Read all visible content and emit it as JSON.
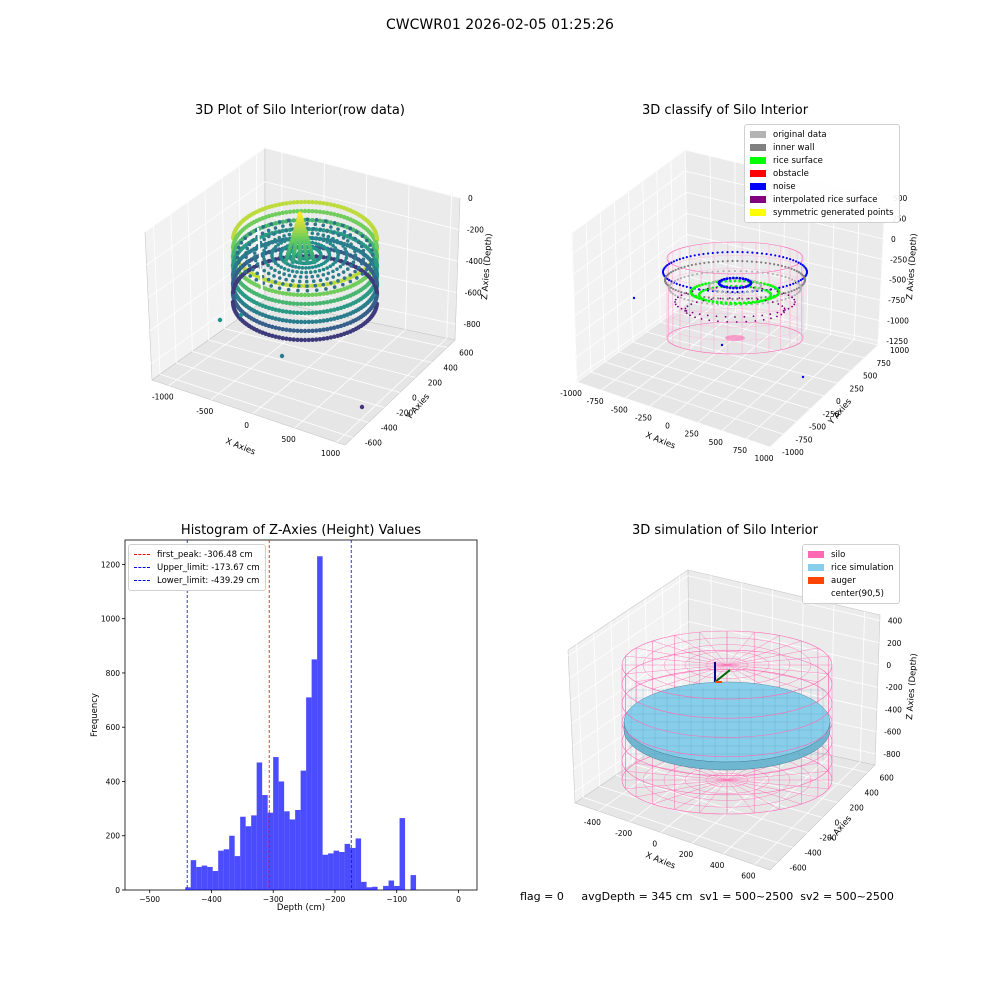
{
  "figure": {
    "suptitle": "CWCWR01 2026-02-05 01:25:26",
    "footer": {
      "flag": "flag = 0",
      "avg_depth": "avgDepth = 345 cm",
      "sv1": "sv1 = 500~2500",
      "sv2": "sv2 = 500~2500"
    }
  },
  "chart_data": [
    {
      "type": "scatter",
      "subtype": "3d",
      "title": "3D Plot of Silo Interior(row data)",
      "xlabel": "X Axies",
      "ylabel": "Y Axies",
      "zlabel": "Z Axies (Depth)",
      "x_ticks": [
        -1000,
        -500,
        0,
        500,
        1000
      ],
      "y_ticks": [
        -600,
        -400,
        -200,
        0,
        200,
        400,
        600
      ],
      "z_ticks": [
        -800,
        -600,
        -400,
        -200,
        0
      ],
      "xlim": [
        -1200,
        1100
      ],
      "ylim": [
        -700,
        700
      ],
      "zlim": [
        -900,
        0
      ],
      "colormap": "viridis",
      "grid": true
    },
    {
      "type": "scatter",
      "subtype": "3d",
      "title": "3D classify of Silo Interior",
      "xlabel": "X Axies",
      "ylabel": "Y Axies",
      "zlabel": "Z Axies (Depth)",
      "x_ticks": [
        -1000,
        -750,
        -500,
        -250,
        0,
        250,
        500,
        750,
        1000
      ],
      "y_ticks": [
        -1000,
        -750,
        -500,
        -250,
        0,
        250,
        500,
        750,
        1000
      ],
      "z_ticks": [
        -1250,
        -1000,
        -750,
        -500,
        -250,
        0,
        250,
        500
      ],
      "xlim": [
        -1000,
        1000
      ],
      "ylim": [
        -1000,
        1000
      ],
      "zlim": [
        -1300,
        500
      ],
      "legend_position": "top-right",
      "legend": [
        {
          "name": "original data",
          "color": "#b3b3b3"
        },
        {
          "name": "inner wall",
          "color": "#808080"
        },
        {
          "name": "rice surface",
          "color": "#00ff00"
        },
        {
          "name": "obstacle",
          "color": "#ff0000"
        },
        {
          "name": "noise",
          "color": "#0000ff"
        },
        {
          "name": "interpolated rice surface",
          "color": "#800080"
        },
        {
          "name": "symmetric generated points",
          "color": "#ffff00"
        }
      ],
      "grid": true
    },
    {
      "type": "bar",
      "subtype": "histogram",
      "title": "Histogram of Z-Axies (Height) Values",
      "xlabel": "Depth (cm)",
      "ylabel": "Frequency",
      "xlim": [
        -540,
        30
      ],
      "ylim": [
        0,
        1290
      ],
      "x_ticks": [
        -500,
        -400,
        -300,
        -200,
        -100,
        0
      ],
      "y_ticks": [
        0,
        200,
        400,
        600,
        800,
        1000,
        1200
      ],
      "bar_color": "#0000ff",
      "bin_width": 8.9,
      "bin_starts": [
        -442.5,
        -433.6,
        -424.7,
        -415.8,
        -406.9,
        -398.0,
        -389.1,
        -380.2,
        -371.3,
        -362.4,
        -353.5,
        -344.6,
        -335.7,
        -326.8,
        -317.9,
        -309.0,
        -300.1,
        -291.2,
        -282.3,
        -273.4,
        -264.5,
        -255.6,
        -246.7,
        -237.8,
        -228.9,
        -220.0,
        -211.1,
        -202.2,
        -193.3,
        -184.4,
        -175.5,
        -166.6,
        -157.7,
        -148.8,
        -139.9,
        -131.0,
        -122.1,
        -113.2,
        -104.3,
        -95.4,
        -86.5,
        -77.6,
        -68.7,
        -59.8,
        -50.9,
        -42.0,
        -33.1,
        -24.2,
        -15.3,
        -6.4
      ],
      "values": [
        10,
        110,
        85,
        90,
        85,
        70,
        145,
        150,
        200,
        125,
        270,
        235,
        275,
        470,
        350,
        285,
        490,
        400,
        290,
        260,
        295,
        440,
        710,
        850,
        1230,
        130,
        135,
        145,
        140,
        170,
        155,
        190,
        30,
        10,
        12,
        0,
        15,
        35,
        15,
        265,
        0,
        55,
        0,
        0,
        0,
        0,
        0,
        0,
        0,
        0
      ],
      "vlines": [
        {
          "label": "first_peak: -306.48 cm",
          "x": -306.48,
          "color": "#ff0000"
        },
        {
          "label": "Upper_limit: -173.67 cm",
          "x": -173.67,
          "color": "#0000ff"
        },
        {
          "label": "Lower_limit: -439.29 cm",
          "x": -439.29,
          "color": "#0000ff"
        }
      ],
      "legend_position": "top-left",
      "grid": false
    },
    {
      "type": "scatter",
      "subtype": "3d-surface",
      "title": "3D simulation of Silo Interior",
      "xlabel": "X Axies",
      "ylabel": "Y Axies",
      "zlabel": "Z Axies (Depth)",
      "x_ticks": [
        -400,
        -200,
        0,
        200,
        400,
        600
      ],
      "y_ticks": [
        -600,
        -400,
        -200,
        0,
        200,
        400,
        600
      ],
      "z_ticks": [
        -800,
        -600,
        -400,
        -200,
        0,
        200,
        400
      ],
      "xlim": [
        -550,
        700
      ],
      "ylim": [
        -700,
        700
      ],
      "zlim": [
        -900,
        450
      ],
      "legend_position": "top-right",
      "legend": [
        {
          "name": "silo",
          "color": "#ff69b4"
        },
        {
          "name": "rice simulation",
          "color": "#87ceeb"
        },
        {
          "name": "auger",
          "color": "#ff4500"
        },
        {
          "name": "center(90,5)",
          "color": "#ffffff"
        }
      ],
      "grid": true
    }
  ]
}
